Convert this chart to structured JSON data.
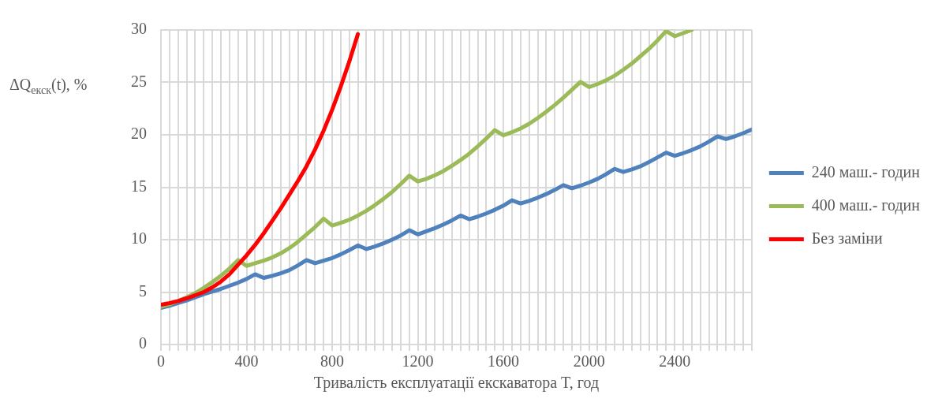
{
  "chart_data": {
    "type": "line",
    "xlabel": "Тривалість експлуатації екскаватора T, год",
    "ylabel": "ΔQ$_{екск}$(t), %",
    "xlim": [
      0,
      2760
    ],
    "ylim": [
      0,
      30
    ],
    "xticks": [
      0,
      {
        "value": 40,
        "label": null
      },
      {
        "value": 80,
        "label": null
      },
      {
        "value": 120,
        "label": null
      },
      {
        "value": 160,
        "label": null
      },
      {
        "value": 200,
        "label": null
      },
      {
        "value": 240,
        "label": null
      },
      {
        "value": 280,
        "label": null
      },
      {
        "value": 320,
        "label": null
      },
      {
        "value": 360,
        "label": null
      },
      400,
      {
        "value": 440,
        "label": null
      },
      {
        "value": 480,
        "label": null
      },
      {
        "value": 520,
        "label": null
      },
      {
        "value": 560,
        "label": null
      },
      {
        "value": 600,
        "label": null
      },
      {
        "value": 640,
        "label": null
      },
      {
        "value": 680,
        "label": null
      },
      {
        "value": 720,
        "label": null
      },
      {
        "value": 760,
        "label": null
      },
      800,
      {
        "value": 840,
        "label": null
      },
      {
        "value": 880,
        "label": null
      },
      {
        "value": 920,
        "label": null
      },
      {
        "value": 960,
        "label": null
      },
      {
        "value": 1000,
        "label": null
      },
      {
        "value": 1040,
        "label": null
      },
      {
        "value": 1080,
        "label": null
      },
      {
        "value": 1120,
        "label": null
      },
      {
        "value": 1160,
        "label": null
      },
      1200,
      {
        "value": 1240,
        "label": null
      },
      {
        "value": 1280,
        "label": null
      },
      {
        "value": 1320,
        "label": null
      },
      {
        "value": 1360,
        "label": null
      },
      {
        "value": 1400,
        "label": null
      },
      {
        "value": 1440,
        "label": null
      },
      {
        "value": 1480,
        "label": null
      },
      {
        "value": 1520,
        "label": null
      },
      {
        "value": 1560,
        "label": null
      },
      1600,
      {
        "value": 1640,
        "label": null
      },
      {
        "value": 1680,
        "label": null
      },
      {
        "value": 1720,
        "label": null
      },
      {
        "value": 1760,
        "label": null
      },
      {
        "value": 1800,
        "label": null
      },
      {
        "value": 1840,
        "label": null
      },
      {
        "value": 1880,
        "label": null
      },
      {
        "value": 1920,
        "label": null
      },
      {
        "value": 1960,
        "label": null
      },
      2000,
      {
        "value": 2040,
        "label": null
      },
      {
        "value": 2080,
        "label": null
      },
      {
        "value": 2120,
        "label": null
      },
      {
        "value": 2160,
        "label": null
      },
      {
        "value": 2200,
        "label": null
      },
      {
        "value": 2240,
        "label": null
      },
      {
        "value": 2280,
        "label": null
      },
      {
        "value": 2320,
        "label": null
      },
      {
        "value": 2360,
        "label": null
      },
      2400,
      {
        "value": 2440,
        "label": null
      },
      {
        "value": 2480,
        "label": null
      },
      {
        "value": 2520,
        "label": null
      },
      {
        "value": 2560,
        "label": null
      },
      {
        "value": 2600,
        "label": null
      },
      {
        "value": 2640,
        "label": null
      },
      {
        "value": 2680,
        "label": null
      },
      {
        "value": 2720,
        "label": null
      },
      {
        "value": 2760,
        "label": null
      }
    ],
    "yticks": [
      0,
      5,
      10,
      15,
      20,
      25,
      30
    ],
    "grid": true,
    "legend": "right",
    "marker": "none",
    "line_style": "solid",
    "series": [
      {
        "name": "240 маш.- годин",
        "color": "#4f81bd",
        "x": [
          0,
          40,
          80,
          120,
          160,
          200,
          240,
          280,
          320,
          360,
          400,
          440,
          480,
          520,
          560,
          600,
          640,
          680,
          720,
          760,
          800,
          840,
          880,
          920,
          960,
          1000,
          1040,
          1080,
          1120,
          1160,
          1200,
          1240,
          1280,
          1320,
          1360,
          1400,
          1440,
          1480,
          1520,
          1560,
          1600,
          1640,
          1680,
          1720,
          1760,
          1800,
          1840,
          1880,
          1920,
          1960,
          2000,
          2040,
          2080,
          2120,
          2160,
          2200,
          2240,
          2280,
          2320,
          2360,
          2400,
          2440,
          2480,
          2520,
          2560,
          2600,
          2640,
          2680,
          2720,
          2760
        ],
        "values": [
          3.5,
          3.7,
          3.95,
          4.2,
          4.5,
          4.8,
          5.05,
          5.3,
          5.6,
          5.9,
          6.25,
          6.7,
          6.35,
          6.55,
          6.8,
          7.1,
          7.55,
          8.05,
          7.75,
          8.0,
          8.25,
          8.6,
          9.0,
          9.45,
          9.1,
          9.35,
          9.65,
          10.0,
          10.4,
          10.9,
          10.5,
          10.8,
          11.1,
          11.45,
          11.85,
          12.3,
          11.95,
          12.2,
          12.5,
          12.85,
          13.25,
          13.75,
          13.45,
          13.7,
          14.0,
          14.35,
          14.75,
          15.2,
          14.9,
          15.15,
          15.45,
          15.8,
          16.25,
          16.75,
          16.45,
          16.7,
          17.0,
          17.4,
          17.85,
          18.3,
          18.0,
          18.25,
          18.55,
          18.9,
          19.35,
          19.85,
          19.6,
          19.85,
          20.15,
          20.5
        ]
      },
      {
        "name": "400 маш.- годин",
        "color": "#9bbb59",
        "x": [
          0,
          40,
          80,
          120,
          160,
          200,
          240,
          280,
          320,
          360,
          400,
          440,
          480,
          520,
          560,
          600,
          640,
          680,
          720,
          760,
          800,
          840,
          880,
          920,
          960,
          1000,
          1040,
          1080,
          1120,
          1160,
          1200,
          1240,
          1280,
          1320,
          1360,
          1400,
          1440,
          1480,
          1520,
          1560,
          1600,
          1640,
          1680,
          1720,
          1760,
          1800,
          1840,
          1880,
          1920,
          1960,
          2000,
          2040,
          2080,
          2120,
          2160,
          2200,
          2240,
          2280,
          2320,
          2360,
          2400,
          2440,
          2480
        ],
        "values": [
          3.6,
          3.85,
          4.15,
          4.5,
          4.9,
          5.4,
          5.95,
          6.55,
          7.25,
          8.05,
          7.5,
          7.75,
          8.0,
          8.3,
          8.7,
          9.2,
          9.8,
          10.5,
          11.2,
          12.0,
          11.35,
          11.6,
          11.9,
          12.3,
          12.75,
          13.3,
          13.9,
          14.55,
          15.3,
          16.1,
          15.55,
          15.8,
          16.15,
          16.55,
          17.05,
          17.6,
          18.2,
          18.9,
          19.65,
          20.45,
          19.95,
          20.25,
          20.6,
          21.05,
          21.6,
          22.2,
          22.85,
          23.55,
          24.3,
          25.05,
          24.55,
          24.85,
          25.2,
          25.65,
          26.2,
          26.8,
          27.5,
          28.2,
          29.0,
          29.9,
          29.4,
          29.7,
          30.0
        ]
      },
      {
        "name": "Без заміни",
        "color": "#ff0000",
        "x": [
          0,
          40,
          80,
          120,
          160,
          200,
          240,
          280,
          320,
          360,
          400,
          440,
          480,
          520,
          560,
          600,
          640,
          680,
          720,
          760,
          800,
          840,
          880,
          920
        ],
        "values": [
          3.8,
          3.95,
          4.15,
          4.4,
          4.7,
          5.0,
          5.45,
          6.0,
          6.7,
          7.6,
          8.5,
          9.5,
          10.6,
          11.8,
          13.0,
          14.3,
          15.6,
          17.0,
          18.6,
          20.4,
          22.4,
          24.6,
          27.0,
          29.6
        ]
      }
    ]
  }
}
